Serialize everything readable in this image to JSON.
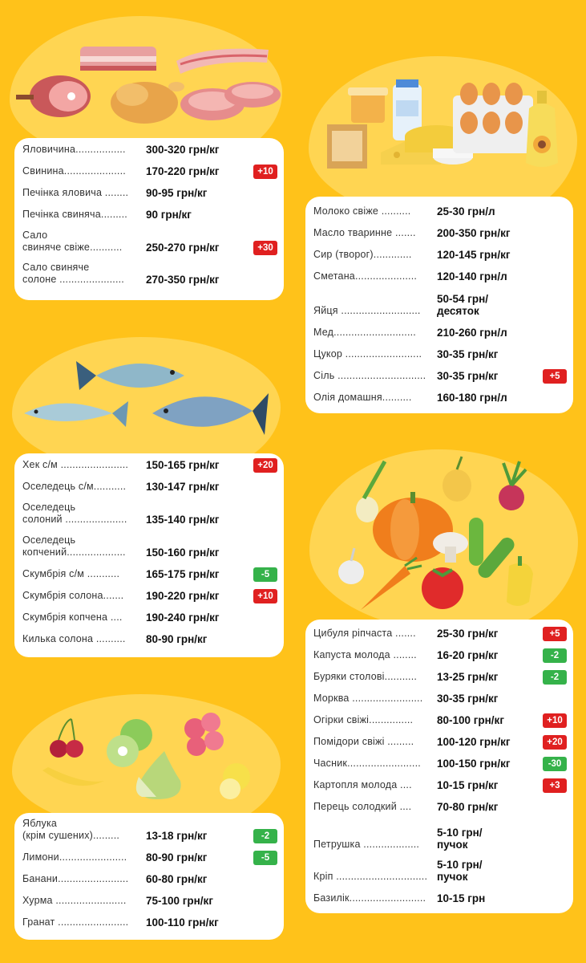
{
  "colors": {
    "background": "#FFC21A",
    "blob": "#FFD552",
    "badge_up": "#E02020",
    "badge_down": "#35B24A"
  },
  "sections": {
    "meat": {
      "illustration": [
        "bacon-icon",
        "ham-icon",
        "chicken-icon",
        "steak-icon"
      ],
      "items": [
        {
          "name": "Яловичина.................",
          "price": "300-320 грн/кг",
          "badge": ""
        },
        {
          "name": "Свинина.....................",
          "price": "170-220 грн/кг",
          "badge": "+10"
        },
        {
          "name": "Печінка яловича ........",
          "price": "90-95 грн/кг",
          "badge": ""
        },
        {
          "name": "Печінка свиняча.........",
          "price": "90 грн/кг",
          "badge": ""
        },
        {
          "name": "Сало\nсвиняче свіже...........",
          "price": "250-270 грн/кг",
          "badge": "+30"
        },
        {
          "name": "Сало свиняче\nсолоне ......................",
          "price": "270-350 грн/кг",
          "badge": ""
        }
      ]
    },
    "fish": {
      "illustration": [
        "fish-icon",
        "mackerel-icon",
        "tuna-icon"
      ],
      "items": [
        {
          "name": "Хек с/м .......................",
          "price": "150-165 грн/кг",
          "badge": "+20"
        },
        {
          "name": "Оселедець с/м...........",
          "price": "130-147 грн/кг",
          "badge": ""
        },
        {
          "name": "Оселедець\nсолоний .....................",
          "price": "135-140 грн/кг",
          "badge": ""
        },
        {
          "name": "Оселедець\nкопчений....................",
          "price": "150-160 грн/кг",
          "badge": ""
        },
        {
          "name": "Скумбрія с/м ...........",
          "price": "165-175 грн/кг",
          "badge": "-5"
        },
        {
          "name": "Скумбрія солона.......",
          "price": "190-220 грн/кг",
          "badge": "+10"
        },
        {
          "name": "Скумбрія копчена ....",
          "price": "190-240 грн/кг",
          "badge": ""
        },
        {
          "name": "Килька солона ..........",
          "price": "80-90 грн/кг",
          "badge": ""
        }
      ]
    },
    "fruits": {
      "illustration": [
        "cherry-icon",
        "apple-icon",
        "raspberry-icon",
        "banana-icon",
        "pear-icon",
        "lemon-icon"
      ],
      "items": [
        {
          "name": "Яблука\n(крім сушених).........",
          "price": "13-18 грн/кг",
          "badge": "-2"
        },
        {
          "name": "Лимони.......................",
          "price": "80-90 грн/кг",
          "badge": "-5"
        },
        {
          "name": "Банани........................",
          "price": "60-80 грн/кг",
          "badge": ""
        },
        {
          "name": "Хурма ........................",
          "price": "75-100 грн/кг",
          "badge": ""
        },
        {
          "name": "Гранат ........................",
          "price": "100-110 грн/кг",
          "badge": ""
        }
      ]
    },
    "dairy": {
      "illustration": [
        "milk-icon",
        "butter-icon",
        "cheese-icon",
        "eggs-icon",
        "oil-bottle-icon"
      ],
      "items": [
        {
          "name": "Молоко свіже ..........",
          "price": "25-30 грн/л",
          "badge": ""
        },
        {
          "name": "Масло тваринне .......",
          "price": "200-350 грн/кг",
          "badge": ""
        },
        {
          "name": "Сир (творог).............",
          "price": "120-145 грн/кг",
          "badge": ""
        },
        {
          "name": "Сметана.....................",
          "price": "120-140 грн/л",
          "badge": ""
        },
        {
          "name": "Яйця ...........................",
          "price": "50-54 грн/\nдесяток",
          "badge": ""
        },
        {
          "name": "Мед............................",
          "price": "210-260 грн/л",
          "badge": ""
        },
        {
          "name": "Цукор ..........................",
          "price": "30-35 грн/кг",
          "badge": ""
        },
        {
          "name": "Сіль ..............................",
          "price": "30-35 грн/кг",
          "badge": "+5"
        },
        {
          "name": "Олія домашня..........",
          "price": "160-180 грн/л",
          "badge": ""
        }
      ]
    },
    "vegetables": {
      "illustration": [
        "onion-icon",
        "pumpkin-icon",
        "beet-icon",
        "garlic-icon",
        "carrot-icon",
        "tomato-icon",
        "cucumber-icon",
        "mushroom-icon",
        "pepper-icon"
      ],
      "items": [
        {
          "name": "Цибуля ріпчаста .......",
          "price": "25-30 грн/кг",
          "badge": "+5"
        },
        {
          "name": "Капуста молода ........",
          "price": "16-20 грн/кг",
          "badge": "-2"
        },
        {
          "name": "Буряки столові...........",
          "price": "13-25 грн/кг",
          "badge": "-2"
        },
        {
          "name": "Морква ........................",
          "price": "30-35 грн/кг",
          "badge": ""
        },
        {
          "name": "Огірки свіжі...............",
          "price": "80-100 грн/кг",
          "badge": "+10"
        },
        {
          "name": "Помідори свіжі .........",
          "price": "100-120 грн/кг",
          "badge": "+20"
        },
        {
          "name": "Часник.........................",
          "price": "100-150 грн/кг",
          "badge": "-30"
        },
        {
          "name": "Картопля молода ....",
          "price": "10-15 грн/кг",
          "badge": "+3"
        },
        {
          "name": "Перець солодкий ....",
          "price": "70-80 грн/кг",
          "badge": ""
        },
        {
          "name": "Петрушка ...................",
          "price": "5-10 грн/\nпучок",
          "badge": ""
        },
        {
          "name": "Кріп ...............................",
          "price": "5-10 грн/\nпучок",
          "badge": ""
        },
        {
          "name": "Базилік..........................",
          "price": "10-15 грн",
          "badge": ""
        }
      ]
    }
  }
}
